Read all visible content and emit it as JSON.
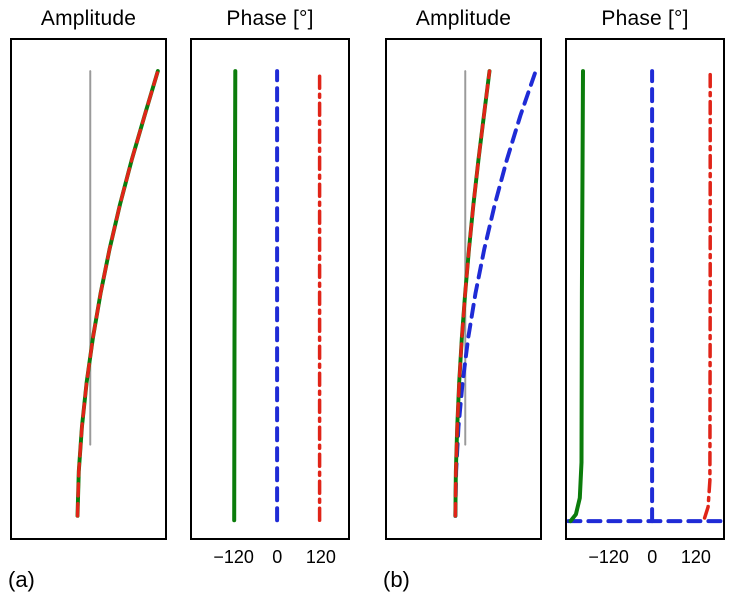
{
  "labels": {
    "a": "(a)",
    "b": "(b)"
  },
  "colors": {
    "series_green": "#0b7c0b",
    "series_blue": "#1f2bd6",
    "series_red": "#e02418",
    "reference_gray": "#9a9a9a",
    "axis": "#000000"
  },
  "chart_data": [
    {
      "id": "amplitude-a",
      "type": "line",
      "title": "Amplitude",
      "xlabel": "",
      "ylabel": "",
      "xlim": [
        -1.1,
        1.05
      ],
      "ylim": [
        -0.05,
        1.07
      ],
      "grid": false,
      "legend": "none",
      "xticks": [],
      "series": [
        {
          "name": "undeformed-reference",
          "color": "#9a9a9a",
          "style": "solid",
          "width": 2,
          "points": [
            [
              0,
              0.16
            ],
            [
              0,
              1.0
            ]
          ]
        },
        {
          "name": "amplitude-green-solid",
          "color": "#0b7c0b",
          "style": "solid",
          "width": 4,
          "points": [
            [
              -0.18,
              0
            ],
            [
              -0.162,
              0.1
            ],
            [
              -0.118,
              0.2
            ],
            [
              -0.051,
              0.3
            ],
            [
              0.037,
              0.4
            ],
            [
              0.145,
              0.5
            ],
            [
              0.271,
              0.6
            ],
            [
              0.417,
              0.7
            ],
            [
              0.582,
              0.8
            ],
            [
              0.764,
              0.9
            ],
            [
              0.95,
              1.0
            ]
          ]
        },
        {
          "name": "amplitude-red-dashed",
          "color": "#e02418",
          "style": "dashed",
          "width": 3.5,
          "points": [
            [
              -0.18,
              0
            ],
            [
              -0.162,
              0.1
            ],
            [
              -0.118,
              0.2
            ],
            [
              -0.051,
              0.3
            ],
            [
              0.037,
              0.4
            ],
            [
              0.145,
              0.5
            ],
            [
              0.271,
              0.6
            ],
            [
              0.417,
              0.7
            ],
            [
              0.582,
              0.8
            ],
            [
              0.764,
              0.9
            ],
            [
              0.95,
              1.0
            ]
          ]
        }
      ]
    },
    {
      "id": "phase-a",
      "type": "line",
      "title": "Phase [°]",
      "xlabel": "",
      "ylabel": "",
      "xlim": [
        -240,
        200
      ],
      "ylim": [
        -0.05,
        1.07
      ],
      "grid": false,
      "legend": "none",
      "xticks": [
        {
          "value": -120,
          "label": "−120"
        },
        {
          "value": 0,
          "label": "0"
        },
        {
          "value": 120,
          "label": "120"
        }
      ],
      "series": [
        {
          "name": "phase-green-solid",
          "color": "#0b7c0b",
          "style": "solid",
          "width": 4,
          "points": [
            [
              -121,
              -0.01
            ],
            [
              -120,
              0.4
            ],
            [
              -118,
              1.0
            ]
          ]
        },
        {
          "name": "phase-blue-dashed",
          "color": "#1f2bd6",
          "style": "dashed",
          "width": 4,
          "points": [
            [
              0,
              -0.01
            ],
            [
              0,
              1.0
            ]
          ]
        },
        {
          "name": "phase-red-dashdot",
          "color": "#e02418",
          "style": "dashdot",
          "width": 3.5,
          "points": [
            [
              120,
              -0.01
            ],
            [
              120,
              1.0
            ]
          ]
        }
      ]
    },
    {
      "id": "amplitude-b",
      "type": "line",
      "title": "Amplitude",
      "xlabel": "",
      "ylabel": "",
      "xlim": [
        -1.1,
        1.05
      ],
      "ylim": [
        -0.05,
        1.07
      ],
      "grid": false,
      "legend": "none",
      "xticks": [],
      "series": [
        {
          "name": "undeformed-reference",
          "color": "#9a9a9a",
          "style": "solid",
          "width": 2,
          "points": [
            [
              0,
              0.16
            ],
            [
              0,
              1.0
            ]
          ]
        },
        {
          "name": "amplitude-blue-dashed",
          "color": "#1f2bd6",
          "style": "dashed",
          "width": 4,
          "points": [
            [
              -0.14,
              0
            ],
            [
              -0.129,
              0.1
            ],
            [
              -0.095,
              0.2
            ],
            [
              -0.038,
              0.3
            ],
            [
              0.041,
              0.4
            ],
            [
              0.143,
              0.5
            ],
            [
              0.267,
              0.6
            ],
            [
              0.414,
              0.7
            ],
            [
              0.583,
              0.8
            ],
            [
              0.775,
              0.9
            ],
            [
              0.99,
              1.0
            ]
          ]
        },
        {
          "name": "amplitude-green-solid",
          "color": "#0b7c0b",
          "style": "solid",
          "width": 4,
          "points": [
            [
              -0.14,
              0
            ],
            [
              -0.132,
              0.1
            ],
            [
              -0.113,
              0.2
            ],
            [
              -0.085,
              0.3
            ],
            [
              -0.048,
              0.4
            ],
            [
              -0.002,
              0.5
            ],
            [
              0.052,
              0.6
            ],
            [
              0.114,
              0.7
            ],
            [
              0.184,
              0.8
            ],
            [
              0.261,
              0.9
            ],
            [
              0.34,
              1.0
            ]
          ]
        },
        {
          "name": "amplitude-red-dashed",
          "color": "#e02418",
          "style": "dashed",
          "width": 3.5,
          "points": [
            [
              -0.14,
              0
            ],
            [
              -0.132,
              0.1
            ],
            [
              -0.113,
              0.2
            ],
            [
              -0.085,
              0.3
            ],
            [
              -0.048,
              0.4
            ],
            [
              -0.002,
              0.5
            ],
            [
              0.052,
              0.6
            ],
            [
              0.114,
              0.7
            ],
            [
              0.184,
              0.8
            ],
            [
              0.261,
              0.9
            ],
            [
              0.34,
              1.0
            ]
          ]
        }
      ]
    },
    {
      "id": "phase-b",
      "type": "line",
      "title": "Phase [°]",
      "xlabel": "",
      "ylabel": "",
      "xlim": [
        -240,
        200
      ],
      "ylim": [
        -0.05,
        1.07
      ],
      "grid": false,
      "legend": "none",
      "xticks": [
        {
          "value": -120,
          "label": "−120"
        },
        {
          "value": 0,
          "label": "0"
        },
        {
          "value": 120,
          "label": "120"
        }
      ],
      "series": [
        {
          "name": "phase-blue-wrap-dashed",
          "color": "#1f2bd6",
          "style": "dashed",
          "width": 4,
          "points": [
            [
              -236,
              -0.012
            ],
            [
              197,
              -0.012
            ]
          ]
        },
        {
          "name": "phase-blue-dashed",
          "color": "#1f2bd6",
          "style": "dashed",
          "width": 4,
          "points": [
            [
              0,
              -0.012
            ],
            [
              0,
              1.0
            ]
          ]
        },
        {
          "name": "phase-green-solid",
          "color": "#0b7c0b",
          "style": "solid",
          "width": 4,
          "points": [
            [
              -230,
              -0.012
            ],
            [
              -215,
              0.003
            ],
            [
              -204,
              0.04
            ],
            [
              -199,
              0.12
            ],
            [
              -198,
              0.5
            ],
            [
              -195,
              1.0
            ]
          ]
        },
        {
          "name": "phase-red-dashdot",
          "color": "#e02418",
          "style": "dashdot",
          "width": 3.5,
          "points": [
            [
              148,
              -0.005
            ],
            [
              158,
              0.02
            ],
            [
              163,
              0.08
            ],
            [
              164,
              0.5
            ],
            [
              164,
              1.0
            ]
          ]
        }
      ]
    }
  ]
}
